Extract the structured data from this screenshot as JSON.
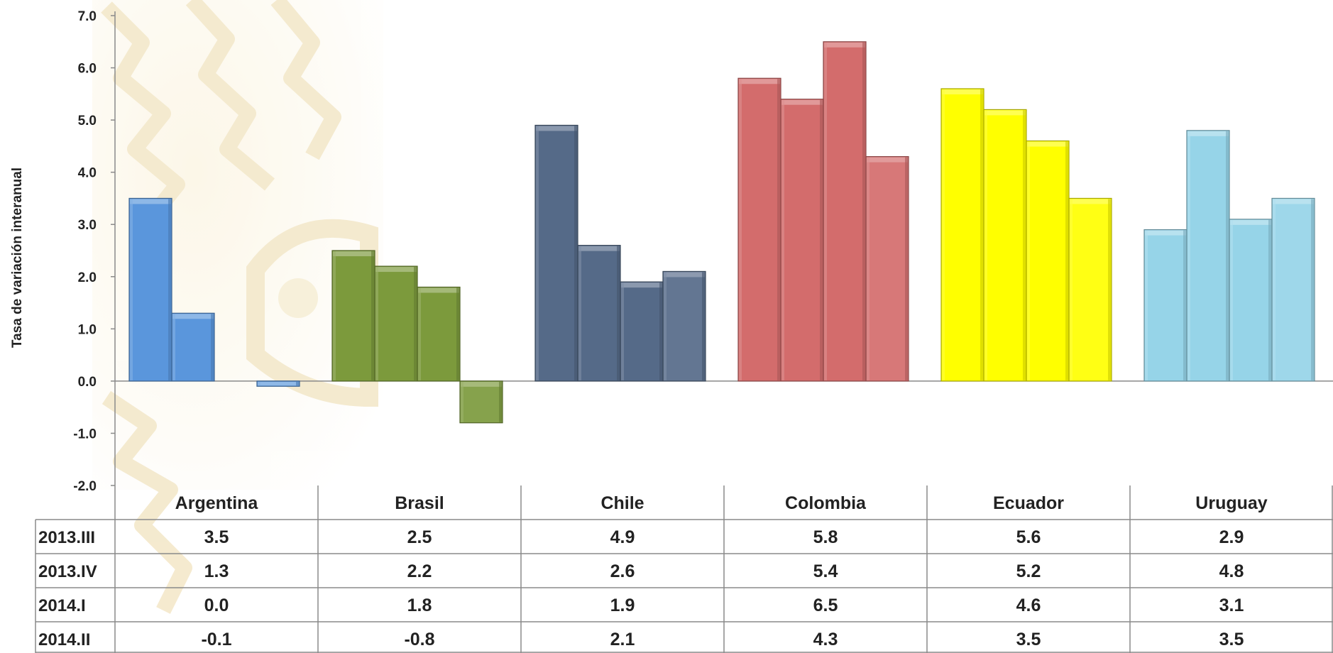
{
  "chart_data": {
    "type": "bar",
    "ylabel": "Tasa de variación interanual",
    "ylim": [
      -2.0,
      7.0
    ],
    "yticks": [
      "7.0",
      "6.0",
      "5.0",
      "4.0",
      "3.0",
      "2.0",
      "1.0",
      "0.0",
      "-1.0",
      "-2.0"
    ],
    "categories": [
      "Argentina",
      "Brasil",
      "Chile",
      "Colombia",
      "Ecuador",
      "Uruguay"
    ],
    "colors": [
      "#5a96dc",
      "#7c9a3c",
      "#556a88",
      "#d36c6c",
      "#ffff00",
      "#96d4e8"
    ],
    "series": [
      {
        "name": "2013.III",
        "values": [
          3.5,
          2.5,
          4.9,
          5.8,
          5.6,
          2.9
        ],
        "labels": [
          "3.5",
          "2.5",
          "4.9",
          "5.8",
          "5.6",
          "2.9"
        ]
      },
      {
        "name": "2013.IV",
        "values": [
          1.3,
          2.2,
          2.6,
          5.4,
          5.2,
          4.8
        ],
        "labels": [
          "1.3",
          "2.2",
          "2.6",
          "5.4",
          "5.2",
          "4.8"
        ]
      },
      {
        "name": "2014.I",
        "values": [
          0.0,
          1.8,
          1.9,
          6.5,
          4.6,
          3.1
        ],
        "labels": [
          "0.0",
          "1.8",
          "1.9",
          "6.5",
          "4.6",
          "3.1"
        ]
      },
      {
        "name": "2014.II",
        "values": [
          -0.1,
          -0.8,
          2.1,
          4.3,
          3.5,
          3.5
        ],
        "labels": [
          "-0.1",
          "-0.8",
          "2.1",
          "4.3",
          "3.5",
          "3.5"
        ]
      }
    ],
    "grid": false,
    "legend": "data table below chart"
  }
}
